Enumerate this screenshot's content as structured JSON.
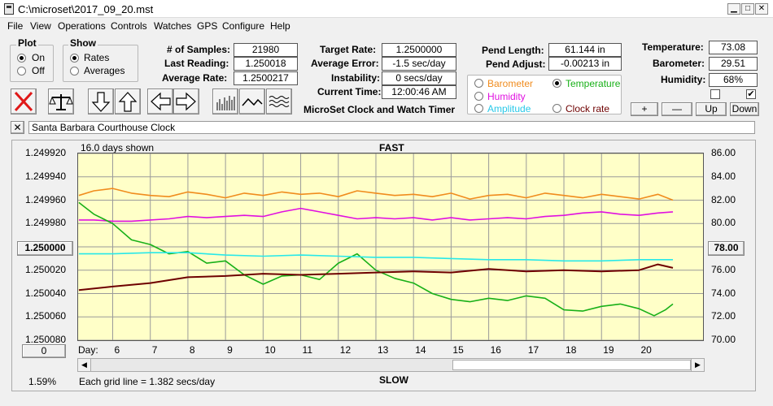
{
  "window": {
    "title": "C:\\microset\\2017_09_20.mst"
  },
  "menu": [
    "File",
    "View",
    "Operations",
    "Controls",
    "Watches",
    "GPS",
    "Configure",
    "Help"
  ],
  "plot_group": {
    "label": "Plot",
    "on": "On",
    "off": "Off",
    "selected": "On"
  },
  "show_group": {
    "label": "Show",
    "rates": "Rates",
    "averages": "Averages",
    "selected": "Rates"
  },
  "stats": {
    "samples_label": "# of Samples:",
    "samples": "21980",
    "last_label": "Last Reading:",
    "last": "1.250018",
    "avg_rate_label": "Average Rate:",
    "avg_rate": "1.2500217",
    "target_label": "Target Rate:",
    "target": "1.2500000",
    "avg_err_label": "Average Error:",
    "avg_err": "-1.5 sec/day",
    "instab_label": "Instability:",
    "instab": "0 secs/day",
    "time_label": "Current Time:",
    "time": "12:00:46 AM",
    "pend_len_label": "Pend Length:",
    "pend_len": "61.144 in",
    "pend_adj_label": "Pend Adjust:",
    "pend_adj": "-0.00213 in",
    "temp_label": "Temperature:",
    "temp": "73.08",
    "baro_label": "Barometer:",
    "baro": "29.51",
    "hum_label": "Humidity:",
    "hum": "68%"
  },
  "app_name": "MicroSet Clock and Watch Timer",
  "channels": {
    "barometer": "Barometer",
    "temperature": "Temperature",
    "humidity": "Humidity",
    "amplitude": "Amplitude",
    "clock_rate": "Clock rate",
    "selected": "Temperature"
  },
  "scale_buttons": {
    "plus": "+",
    "minus": "—",
    "up": "Up",
    "down": "Down"
  },
  "checkbox_right_checked": "✔",
  "close_x": "✕",
  "watch_name": "Santa Barbara Courthouse Clock",
  "left_rate_button": "1.250000",
  "right_temp_button": "78.00",
  "zero_button": "0",
  "status": {
    "percent": "1.59%",
    "grid_note": "Each grid line = 1.382 secs/day"
  },
  "colors": {
    "plot_bg": "#ffffc8",
    "barometer": "#f08c1e",
    "humidity": "#e010e0",
    "temperature": "#18b018",
    "amplitude": "#28e8e8",
    "clock_rate": "#6e0000"
  },
  "chart_data": {
    "type": "line",
    "days_shown": "16.0 days shown",
    "top_label": "FAST",
    "bottom_label": "SLOW",
    "x_axis_label": "Day:",
    "x_ticks": [
      6,
      7,
      8,
      9,
      10,
      11,
      12,
      13,
      14,
      15,
      16,
      17,
      18,
      19,
      20
    ],
    "xlim": [
      5.08,
      21.7
    ],
    "y_left_ticks": [
      "1.249920",
      "1.249940",
      "1.249960",
      "1.249980",
      "1.250000",
      "1.250020",
      "1.250040",
      "1.250060",
      "1.250080"
    ],
    "y_left_range": [
      1.24992,
      1.25008
    ],
    "y_right_ticks": [
      "86.00",
      "84.00",
      "82.00",
      "80.00",
      "78.00",
      "76.00",
      "74.00",
      "72.00",
      "70.00"
    ],
    "y_right_range": [
      86,
      70
    ],
    "series": [
      {
        "name": "Barometer",
        "axis": "right",
        "x": [
          5.1,
          5.5,
          6,
          6.5,
          7,
          7.5,
          8,
          8.5,
          9,
          9.5,
          10,
          10.5,
          11,
          11.5,
          12,
          12.5,
          13,
          13.5,
          14,
          14.5,
          15,
          15.5,
          16,
          16.5,
          17,
          17.5,
          18,
          18.5,
          19,
          19.5,
          20,
          20.5,
          20.9
        ],
        "y": [
          82.4,
          82.8,
          83.0,
          82.6,
          82.4,
          82.3,
          82.7,
          82.5,
          82.2,
          82.6,
          82.4,
          82.7,
          82.5,
          82.6,
          82.3,
          82.8,
          82.6,
          82.4,
          82.5,
          82.3,
          82.6,
          82.1,
          82.4,
          82.5,
          82.2,
          82.6,
          82.4,
          82.2,
          82.5,
          82.3,
          82.1,
          82.5,
          82.0
        ]
      },
      {
        "name": "Humidity",
        "axis": "right",
        "x": [
          5.1,
          5.5,
          6,
          6.5,
          7,
          7.5,
          8,
          8.5,
          9,
          9.5,
          10,
          10.5,
          11,
          11.5,
          12,
          12.5,
          13,
          13.5,
          14,
          14.5,
          15,
          15.5,
          16,
          16.5,
          17,
          17.5,
          18,
          18.5,
          19,
          19.5,
          20,
          20.5,
          20.9
        ],
        "y": [
          80.3,
          80.3,
          80.2,
          80.2,
          80.3,
          80.4,
          80.6,
          80.5,
          80.6,
          80.7,
          80.6,
          81.0,
          81.3,
          81.0,
          80.7,
          80.4,
          80.5,
          80.4,
          80.5,
          80.3,
          80.5,
          80.3,
          80.4,
          80.5,
          80.4,
          80.6,
          80.7,
          80.9,
          81.0,
          80.8,
          80.7,
          80.9,
          81.0
        ]
      },
      {
        "name": "Temperature",
        "axis": "right",
        "x": [
          5.1,
          5.5,
          6,
          6.5,
          7,
          7.5,
          8,
          8.5,
          9,
          9.5,
          10,
          10.5,
          11,
          11.5,
          12,
          12.5,
          13,
          13.5,
          14,
          14.5,
          15,
          15.5,
          16,
          16.5,
          17,
          17.5,
          18,
          18.5,
          19,
          19.5,
          20,
          20.4,
          20.7,
          20.9
        ],
        "y": [
          81.8,
          80.8,
          80.0,
          78.6,
          78.2,
          77.4,
          77.6,
          76.6,
          76.8,
          75.6,
          74.8,
          75.5,
          75.6,
          75.2,
          76.6,
          77.4,
          76.0,
          75.3,
          74.9,
          74.0,
          73.5,
          73.3,
          73.6,
          73.4,
          73.8,
          73.6,
          72.6,
          72.5,
          72.9,
          73.1,
          72.7,
          72.1,
          72.6,
          73.1
        ]
      },
      {
        "name": "Amplitude",
        "axis": "right",
        "x": [
          5.1,
          6,
          7,
          8,
          9,
          10,
          11,
          12,
          13,
          14,
          15,
          16,
          17,
          18,
          19,
          20,
          20.9
        ],
        "y": [
          77.4,
          77.4,
          77.5,
          77.5,
          77.3,
          77.2,
          77.3,
          77.2,
          77.1,
          77.1,
          77.0,
          76.9,
          76.9,
          76.8,
          76.8,
          76.9,
          76.9
        ]
      },
      {
        "name": "Clock rate",
        "axis": "left",
        "x": [
          5.1,
          6,
          7,
          8,
          9,
          10,
          11,
          12,
          13,
          14,
          15,
          16,
          17,
          18,
          19,
          20,
          20.5,
          20.9
        ],
        "y": [
          1.250037,
          1.250034,
          1.250031,
          1.250026,
          1.250025,
          1.250023,
          1.250024,
          1.250023,
          1.250022,
          1.250021,
          1.250022,
          1.250019,
          1.250021,
          1.25002,
          1.250021,
          1.25002,
          1.250015,
          1.250018
        ]
      }
    ]
  }
}
